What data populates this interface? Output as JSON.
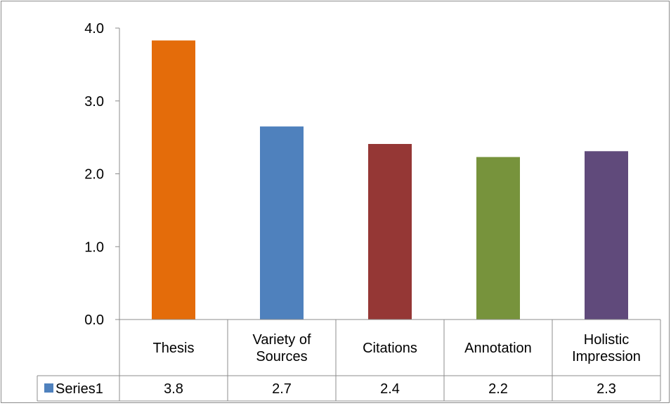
{
  "chart_data": {
    "type": "bar",
    "categories": [
      {
        "lines": [
          "Thesis"
        ]
      },
      {
        "lines": [
          "Variety of",
          "Sources"
        ]
      },
      {
        "lines": [
          "Citations"
        ]
      },
      {
        "lines": [
          "Annotation"
        ]
      },
      {
        "lines": [
          "Holistic",
          "Impression"
        ]
      }
    ],
    "series": [
      {
        "name": "Series1",
        "values": [
          3.83,
          2.65,
          2.41,
          2.23,
          2.31
        ],
        "table_labels": [
          "3.8",
          "2.7",
          "2.4",
          "2.2",
          "2.3"
        ],
        "legend_color": "#4f81bd"
      }
    ],
    "bar_colors": [
      "#e46c0a",
      "#4f81bd",
      "#953735",
      "#77933c",
      "#604a7b"
    ],
    "ylim": [
      0,
      4
    ],
    "yticks": [
      "0.0",
      "1.0",
      "2.0",
      "3.0",
      "4.0"
    ],
    "grid": false,
    "legend": "data-table",
    "data_table": true
  }
}
